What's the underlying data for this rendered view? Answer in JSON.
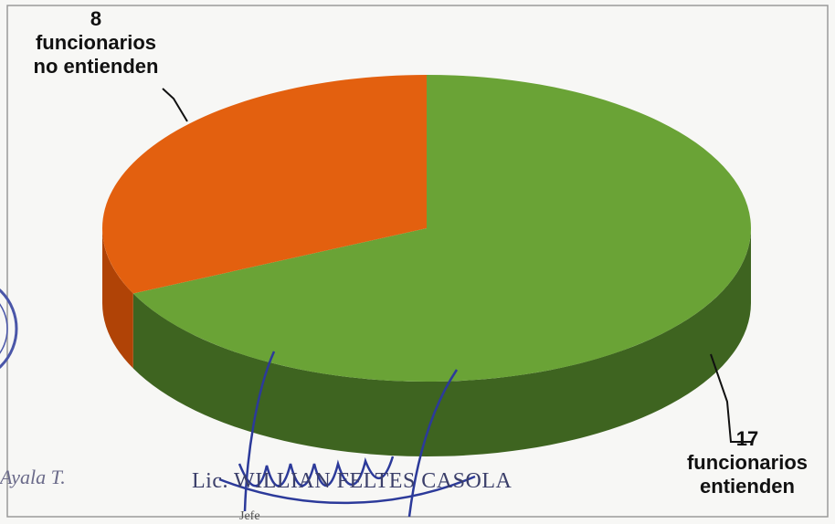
{
  "chart_data": {
    "type": "pie",
    "style": "3d",
    "slices": [
      {
        "label": "funcionarios entienden",
        "value": 17,
        "color": "#6aa336",
        "side_color": "#3e6420"
      },
      {
        "label": "funcionarios no entienden",
        "value": 8,
        "color": "#e3600f",
        "side_color": "#b04306"
      }
    ]
  },
  "labels": {
    "no_value": "8",
    "no_line1": "funcionarios",
    "no_line2": "no entienden",
    "yes_value": "17",
    "yes_line1": "funcionarios",
    "yes_line2": "entienden"
  },
  "signatures": {
    "name": "Lic. WILLIAN FELTES CASOLA",
    "ayala": "Ayala T.",
    "jefe": "Jefe"
  }
}
